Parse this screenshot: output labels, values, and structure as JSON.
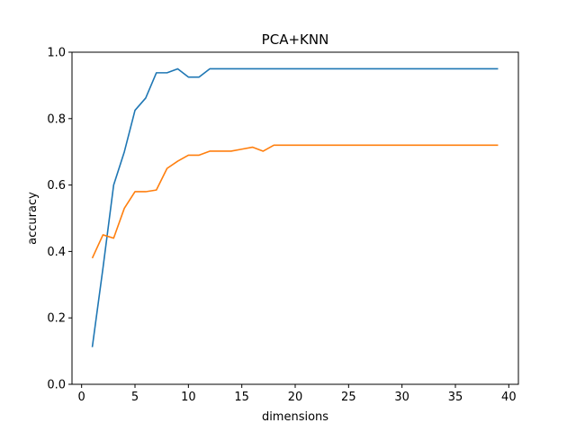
{
  "chart_data": {
    "type": "line",
    "title": "PCA+KNN",
    "xlabel": "dimensions",
    "ylabel": "accuracy",
    "xlim": [
      -0.9,
      40.9
    ],
    "ylim": [
      0.0,
      1.0
    ],
    "xticks": [
      0,
      5,
      10,
      15,
      20,
      25,
      30,
      35,
      40
    ],
    "yticks": [
      0.0,
      0.2,
      0.4,
      0.6,
      0.8,
      1.0
    ],
    "xtick_labels": [
      "0",
      "5",
      "10",
      "15",
      "20",
      "25",
      "30",
      "35",
      "40"
    ],
    "ytick_labels": [
      "0.0",
      "0.2",
      "0.4",
      "0.6",
      "0.8",
      "1.0"
    ],
    "grid": false,
    "legend": null,
    "series": [
      {
        "color": "#1f77b4",
        "x": [
          1,
          2,
          3,
          4,
          5,
          6,
          7,
          8,
          9,
          10,
          11,
          12,
          13,
          14,
          15,
          16,
          17,
          18,
          19,
          20,
          21,
          22,
          23,
          24,
          25,
          26,
          27,
          28,
          29,
          30,
          31,
          32,
          33,
          34,
          35,
          36,
          37,
          38,
          39
        ],
        "y": [
          0.112,
          0.35,
          0.6,
          0.7,
          0.825,
          0.862,
          0.938,
          0.938,
          0.95,
          0.925,
          0.925,
          0.95,
          0.95,
          0.95,
          0.95,
          0.95,
          0.95,
          0.95,
          0.95,
          0.95,
          0.95,
          0.95,
          0.95,
          0.95,
          0.95,
          0.95,
          0.95,
          0.95,
          0.95,
          0.95,
          0.95,
          0.95,
          0.95,
          0.95,
          0.95,
          0.95,
          0.95,
          0.95,
          0.95
        ]
      },
      {
        "color": "#ff7f0e",
        "x": [
          1,
          2,
          3,
          4,
          5,
          6,
          7,
          8,
          9,
          10,
          11,
          12,
          13,
          14,
          15,
          16,
          17,
          18,
          19,
          20,
          21,
          22,
          23,
          24,
          25,
          26,
          27,
          28,
          29,
          30,
          31,
          32,
          33,
          34,
          35,
          36,
          37,
          38,
          39
        ],
        "y": [
          0.38,
          0.45,
          0.44,
          0.53,
          0.58,
          0.58,
          0.585,
          0.65,
          0.672,
          0.69,
          0.69,
          0.702,
          0.702,
          0.702,
          0.708,
          0.714,
          0.702,
          0.72,
          0.72,
          0.72,
          0.72,
          0.72,
          0.72,
          0.72,
          0.72,
          0.72,
          0.72,
          0.72,
          0.72,
          0.72,
          0.72,
          0.72,
          0.72,
          0.72,
          0.72,
          0.72,
          0.72,
          0.72,
          0.72
        ]
      }
    ]
  }
}
